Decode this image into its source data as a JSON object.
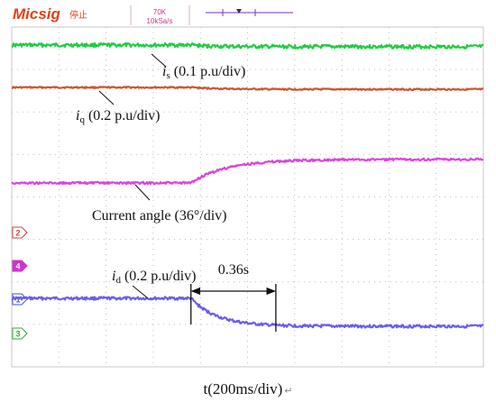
{
  "scope": {
    "brand": "Micsig",
    "status": "停止",
    "sample_points": "70K",
    "sample_rate": "10kSa/s"
  },
  "chart_data": {
    "type": "line",
    "x_unit": "ms",
    "x_range": [
      0,
      2000
    ],
    "step_time": 760,
    "traces": [
      {
        "id": "is",
        "label_main": "i",
        "label_sub": "s",
        "label_suffix": " (0.1 p.u/div)",
        "color": "#22cc44",
        "before": 1.0,
        "after": 0.92,
        "noise": 2.0,
        "tau": 80
      },
      {
        "id": "iq",
        "label_main": "i",
        "label_sub": "q",
        "label_suffix": " (0.2 p.u/div)",
        "color": "#cc5533",
        "before": 1.0,
        "after": 0.96,
        "noise": 0.8,
        "tau": 120
      },
      {
        "id": "angle",
        "label_text": "Current angle (36°/div)",
        "color": "#dd44dd",
        "before": 0.0,
        "after": 0.45,
        "noise": 1.2,
        "tau": 150
      },
      {
        "id": "id",
        "label_main": "i",
        "label_sub": "d",
        "label_suffix": " (0.2 p.u/div)",
        "color": "#6a5cf0",
        "before": 1.0,
        "after": 0.0,
        "noise": 1.6,
        "tau": 110
      }
    ],
    "annotation": {
      "label": "0.36s",
      "start": 760,
      "end": 1120
    },
    "channel_markers": [
      {
        "number": "2",
        "color": "#cc4444"
      },
      {
        "number": "4",
        "color": "#cc33cc"
      },
      {
        "number": "1",
        "color": "#4455cc"
      },
      {
        "number": "3",
        "color": "#33aa33"
      }
    ]
  },
  "caption": "t(200ms/div)",
  "caption_mark": "↵"
}
